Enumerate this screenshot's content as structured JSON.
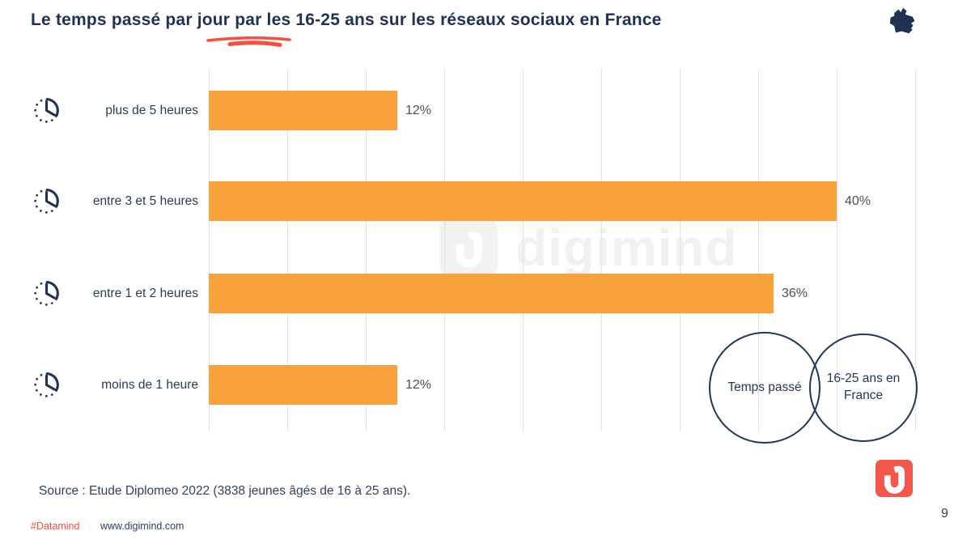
{
  "title": "Le temps passé par jour par les 16-25 ans sur les réseaux sociaux en France",
  "chart_data": {
    "type": "bar",
    "orientation": "horizontal",
    "title": "Le temps passé par jour par les 16-25 ans sur les réseaux sociaux en France",
    "categories": [
      "plus de 5 heures",
      "entre 3 et 5 heures",
      "entre 1 et 2 heures",
      "moins de 1 heure"
    ],
    "values": [
      12,
      40,
      36,
      12
    ],
    "value_labels": [
      "12%",
      "40%",
      "36%",
      "12%"
    ],
    "unit": "%",
    "xlim": [
      0,
      45
    ],
    "gridline_step": 5,
    "grid": true,
    "legend": "none",
    "bar_color": "#F9A23C",
    "category_icon": "clock-icon"
  },
  "venn": {
    "left_label": "Temps passé",
    "right_label": "16-25 ans en France"
  },
  "watermark_text": "digimind",
  "source": "Source : Etude Diplomeo 2022 (3838 jeunes âgés de 16 à 25 ans).",
  "footer": {
    "hashtag": "#Datamind",
    "website": "www.digimind.com"
  },
  "page_number": "9",
  "colors": {
    "navy": "#1F3253",
    "orange": "#F9A23C",
    "coral": "#F4503C",
    "gridline": "#E3E3E7",
    "value_label": "#4F4F4F",
    "watermark": "#F1F1F1",
    "logo_background": "#F4564B"
  },
  "icons": {
    "title_icon": "france-map-icon",
    "row_icon": "clock-icon",
    "logo_icon": "digimind-d-logo"
  }
}
